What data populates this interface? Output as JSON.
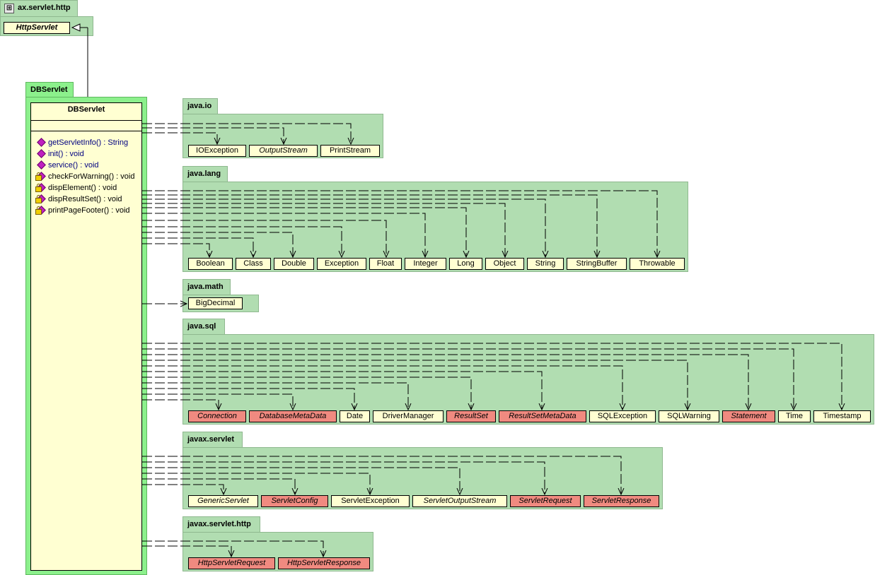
{
  "packages": {
    "http_top": {
      "name": "ax.servlet.http",
      "classes": [
        {
          "name": "HttpServlet",
          "style": "italic-bold"
        }
      ]
    },
    "dbservlet": {
      "name": "DBServlet"
    },
    "java_io": {
      "name": "java.io",
      "classes": [
        "IOException",
        "OutputStream",
        "PrintStream"
      ]
    },
    "java_lang": {
      "name": "java.lang",
      "classes": [
        "Boolean",
        "Class",
        "Double",
        "Exception",
        "Float",
        "Integer",
        "Long",
        "Object",
        "String",
        "StringBuffer",
        "Throwable"
      ]
    },
    "java_math": {
      "name": "java.math",
      "classes": [
        "BigDecimal"
      ]
    },
    "java_sql": {
      "name": "java.sql",
      "classes": [
        "Connection",
        "DatabaseMetaData",
        "Date",
        "DriverManager",
        "ResultSet",
        "ResultSetMetaData",
        "SQLException",
        "SQLWarning",
        "Statement",
        "Time",
        "Timestamp"
      ]
    },
    "javax_servlet": {
      "name": "javax.servlet",
      "classes": [
        "GenericServlet",
        "ServletConfig",
        "ServletException",
        "ServletOutputStream",
        "ServletRequest",
        "ServletResponse"
      ]
    },
    "javax_servlet_http": {
      "name": "javax.servlet.http",
      "classes": [
        "HttpServletRequest",
        "HttpServletResponse"
      ]
    }
  },
  "dbservlet_class": {
    "name": "DBServlet",
    "methods": [
      {
        "label": "getServletInfo() : String",
        "visibility": "public"
      },
      {
        "label": "init() : void",
        "visibility": "public"
      },
      {
        "label": "service() : void",
        "visibility": "public"
      },
      {
        "label": "checkForWarning() : void",
        "visibility": "private"
      },
      {
        "label": "dispElement() : void",
        "visibility": "private"
      },
      {
        "label": "dispResultSet() : void",
        "visibility": "private"
      },
      {
        "label": "printPageFooter() : void",
        "visibility": "private"
      }
    ]
  },
  "colors": {
    "package": "#b1ddb1",
    "package_focus": "#8cf08c",
    "class": "#ffffd2",
    "interface_highlight": "#f08a80"
  }
}
